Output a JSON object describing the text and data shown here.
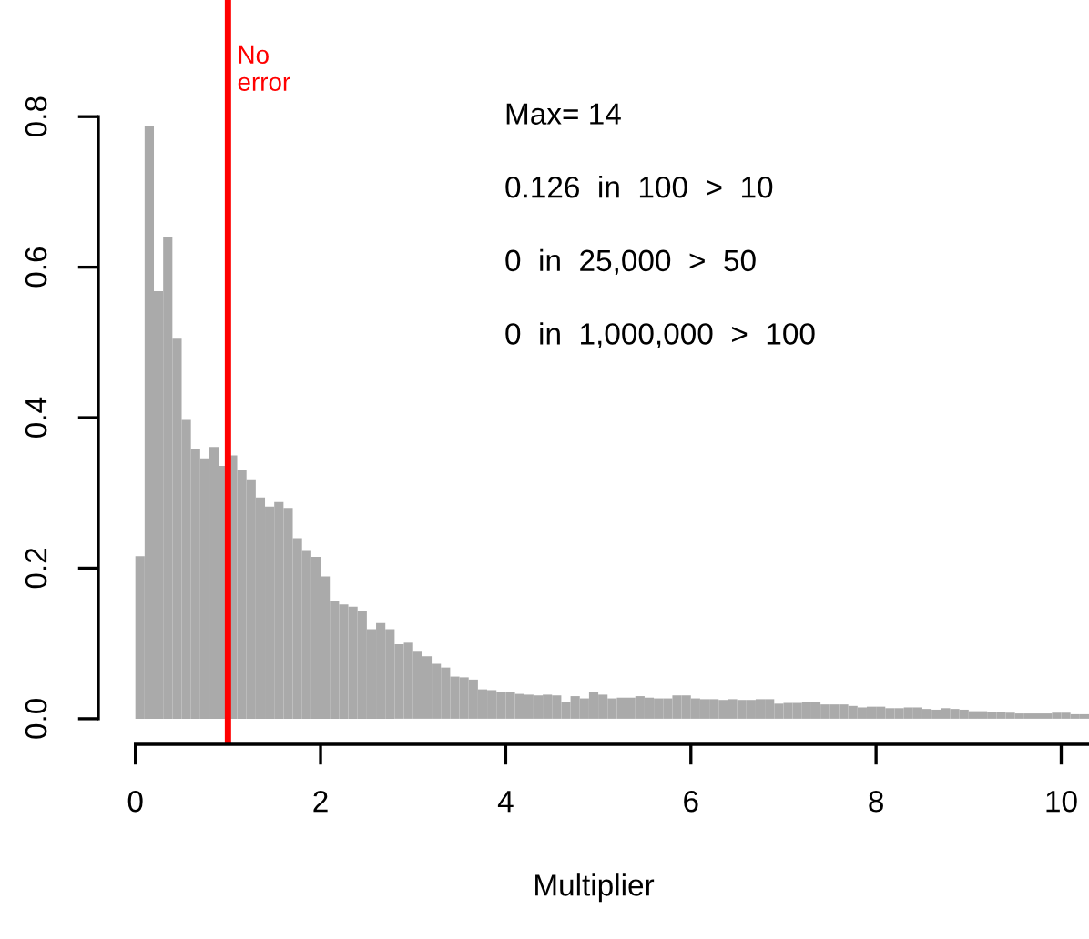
{
  "chart_data": {
    "type": "histogram",
    "xlabel": "Multiplier",
    "bins": [
      0,
      0.1,
      0.2,
      0.3,
      0.4,
      0.5,
      0.6,
      0.7,
      0.8,
      0.9,
      1.0,
      1.1,
      1.2,
      1.3,
      1.4,
      1.5,
      1.6,
      1.7,
      1.8,
      1.9,
      2.0,
      2.1,
      2.2,
      2.3,
      2.4,
      2.5,
      2.6,
      2.7,
      2.8,
      2.9,
      3.0,
      3.1,
      3.2,
      3.3,
      3.4,
      3.5,
      3.6,
      3.7,
      3.8,
      3.9,
      4.0,
      4.1,
      4.2,
      4.3,
      4.4,
      4.5,
      4.6,
      4.7,
      4.8,
      4.9,
      5.0,
      5.1,
      5.2,
      5.3,
      5.4,
      5.5,
      5.6,
      5.7,
      5.8,
      5.9,
      6.0,
      6.1,
      6.2,
      6.3,
      6.4,
      6.5,
      6.6,
      6.7,
      6.8,
      6.9,
      7.0,
      7.1,
      7.2,
      7.3,
      7.4,
      7.5,
      7.6,
      7.7,
      7.8,
      7.9,
      8.0,
      8.1,
      8.2,
      8.3,
      8.4,
      8.5,
      8.6,
      8.7,
      8.8,
      8.9,
      9.0,
      9.1,
      9.2,
      9.3,
      9.4,
      9.5,
      9.6,
      9.7,
      9.8,
      9.9,
      10.0,
      10.1,
      10.2,
      10.3
    ],
    "values": [
      0.216,
      0.787,
      0.568,
      0.64,
      0.505,
      0.397,
      0.358,
      0.346,
      0.361,
      0.336,
      0.35,
      0.33,
      0.318,
      0.294,
      0.282,
      0.288,
      0.28,
      0.24,
      0.223,
      0.215,
      0.189,
      0.157,
      0.152,
      0.149,
      0.143,
      0.119,
      0.127,
      0.119,
      0.099,
      0.101,
      0.089,
      0.083,
      0.073,
      0.068,
      0.056,
      0.055,
      0.052,
      0.039,
      0.038,
      0.036,
      0.035,
      0.033,
      0.032,
      0.031,
      0.032,
      0.031,
      0.022,
      0.03,
      0.027,
      0.035,
      0.032,
      0.027,
      0.028,
      0.028,
      0.03,
      0.028,
      0.027,
      0.027,
      0.031,
      0.031,
      0.027,
      0.026,
      0.026,
      0.025,
      0.026,
      0.025,
      0.025,
      0.026,
      0.026,
      0.02,
      0.021,
      0.021,
      0.022,
      0.022,
      0.019,
      0.019,
      0.019,
      0.017,
      0.015,
      0.016,
      0.016,
      0.014,
      0.014,
      0.015,
      0.015,
      0.013,
      0.012,
      0.014,
      0.013,
      0.012,
      0.01,
      0.01,
      0.009,
      0.009,
      0.008,
      0.007,
      0.007,
      0.007,
      0.007,
      0.008,
      0.008,
      0.006,
      0.006
    ],
    "color": "#aaaaaa",
    "xlim": [
      -0.4,
      10.3
    ],
    "ylim": [
      -0.034,
      0.955
    ],
    "xticks": [
      0,
      2,
      4,
      6,
      8,
      10
    ],
    "yticks": [
      {
        "value": 0,
        "label": "0.0"
      },
      {
        "value": 0.2,
        "label": "0.2"
      },
      {
        "value": 0.4,
        "label": "0.4"
      },
      {
        "value": 0.6,
        "label": "0.6"
      },
      {
        "value": 0.8,
        "label": "0.8"
      }
    ],
    "ref_lines": [
      {
        "axis": "x",
        "value": 1,
        "label": "No\nerror",
        "color": "#ff0000"
      }
    ],
    "annotations": [
      "Max= 14",
      "0.126  in  100  >  10",
      "0  in  25,000  >  50",
      "0  in  1,000,000  >  100"
    ],
    "grid": false,
    "legend": false
  }
}
